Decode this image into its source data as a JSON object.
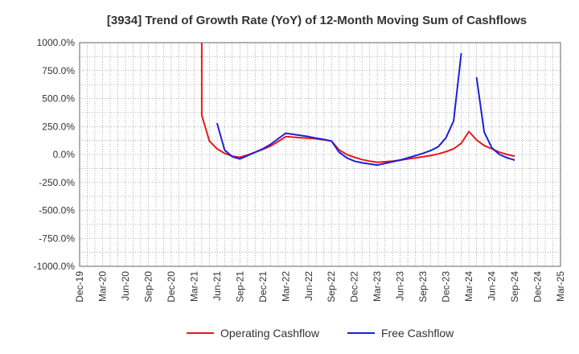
{
  "chart_data": {
    "type": "line",
    "title": "[3934]  Trend of Growth Rate (YoY) of 12-Month Moving Sum of Cashflows",
    "xlabel": "",
    "ylabel": "",
    "ylim": [
      -1000,
      1000
    ],
    "y_ticks": [
      "1000.0%",
      "750.0%",
      "500.0%",
      "250.0%",
      "0.0%",
      "-250.0%",
      "-500.0%",
      "-750.0%",
      "-1000.0%"
    ],
    "x_ticks": [
      "Dec-19",
      "Mar-20",
      "Jun-20",
      "Sep-20",
      "Dec-20",
      "Mar-21",
      "Jun-21",
      "Sep-21",
      "Dec-21",
      "Mar-22",
      "Jun-22",
      "Sep-22",
      "Dec-22",
      "Mar-23",
      "Jun-23",
      "Sep-23",
      "Dec-23",
      "Mar-24",
      "Jun-24",
      "Sep-24",
      "Dec-24",
      "Mar-25"
    ],
    "x_range": [
      "2019-12",
      "2025-03"
    ],
    "grid": true,
    "legend_position": "bottom",
    "colors": {
      "operating": "#e8191b",
      "free": "#1f1fd6"
    },
    "series": [
      {
        "name": "Operating Cashflow",
        "color": "#e8191b",
        "points": [
          {
            "x": "2021-04",
            "y": 1000
          },
          {
            "x": "2021-04",
            "y": 350
          },
          {
            "x": "2021-05",
            "y": 120
          },
          {
            "x": "2021-06",
            "y": 50
          },
          {
            "x": "2021-07",
            "y": 10
          },
          {
            "x": "2021-08",
            "y": -15
          },
          {
            "x": "2021-09",
            "y": -25
          },
          {
            "x": "2021-10",
            "y": -5
          },
          {
            "x": "2021-11",
            "y": 20
          },
          {
            "x": "2021-12",
            "y": 45
          },
          {
            "x": "2022-01",
            "y": 75
          },
          {
            "x": "2022-02",
            "y": 115
          },
          {
            "x": "2022-03",
            "y": 160
          },
          {
            "x": "2022-04",
            "y": 155
          },
          {
            "x": "2022-05",
            "y": 150
          },
          {
            "x": "2022-06",
            "y": 145
          },
          {
            "x": "2022-07",
            "y": 140
          },
          {
            "x": "2022-08",
            "y": 130
          },
          {
            "x": "2022-09",
            "y": 120
          },
          {
            "x": "2022-10",
            "y": 40
          },
          {
            "x": "2022-11",
            "y": 0
          },
          {
            "x": "2022-12",
            "y": -25
          },
          {
            "x": "2023-01",
            "y": -45
          },
          {
            "x": "2023-02",
            "y": -60
          },
          {
            "x": "2023-03",
            "y": -70
          },
          {
            "x": "2023-04",
            "y": -65
          },
          {
            "x": "2023-05",
            "y": -60
          },
          {
            "x": "2023-06",
            "y": -50
          },
          {
            "x": "2023-07",
            "y": -40
          },
          {
            "x": "2023-08",
            "y": -30
          },
          {
            "x": "2023-09",
            "y": -20
          },
          {
            "x": "2023-10",
            "y": -10
          },
          {
            "x": "2023-11",
            "y": 5
          },
          {
            "x": "2023-12",
            "y": 25
          },
          {
            "x": "2024-01",
            "y": 50
          },
          {
            "x": "2024-02",
            "y": 100
          },
          {
            "x": "2024-03",
            "y": 205
          },
          {
            "x": "2024-04",
            "y": 130
          },
          {
            "x": "2024-05",
            "y": 80
          },
          {
            "x": "2024-06",
            "y": 50
          },
          {
            "x": "2024-07",
            "y": 20
          },
          {
            "x": "2024-08",
            "y": 0
          },
          {
            "x": "2024-09",
            "y": -15
          }
        ]
      },
      {
        "name": "Free Cashflow",
        "color": "#1f1fd6",
        "segments": [
          [
            {
              "x": "2021-06",
              "y": 280
            },
            {
              "x": "2021-07",
              "y": 40
            },
            {
              "x": "2021-08",
              "y": -20
            },
            {
              "x": "2021-09",
              "y": -40
            },
            {
              "x": "2021-10",
              "y": -10
            },
            {
              "x": "2021-11",
              "y": 20
            },
            {
              "x": "2021-12",
              "y": 50
            },
            {
              "x": "2022-01",
              "y": 90
            },
            {
              "x": "2022-02",
              "y": 140
            },
            {
              "x": "2022-03",
              "y": 190
            },
            {
              "x": "2022-04",
              "y": 180
            },
            {
              "x": "2022-05",
              "y": 170
            },
            {
              "x": "2022-06",
              "y": 160
            },
            {
              "x": "2022-07",
              "y": 145
            },
            {
              "x": "2022-08",
              "y": 135
            },
            {
              "x": "2022-09",
              "y": 120
            },
            {
              "x": "2022-10",
              "y": 20
            },
            {
              "x": "2022-11",
              "y": -30
            },
            {
              "x": "2022-12",
              "y": -60
            },
            {
              "x": "2023-01",
              "y": -75
            },
            {
              "x": "2023-02",
              "y": -85
            },
            {
              "x": "2023-03",
              "y": -95
            },
            {
              "x": "2023-04",
              "y": -80
            },
            {
              "x": "2023-05",
              "y": -65
            },
            {
              "x": "2023-06",
              "y": -50
            },
            {
              "x": "2023-07",
              "y": -30
            },
            {
              "x": "2023-08",
              "y": -10
            },
            {
              "x": "2023-09",
              "y": 10
            },
            {
              "x": "2023-10",
              "y": 35
            },
            {
              "x": "2023-11",
              "y": 70
            },
            {
              "x": "2023-12",
              "y": 150
            },
            {
              "x": "2024-01",
              "y": 300
            },
            {
              "x": "2024-02",
              "y": 905
            }
          ],
          [
            {
              "x": "2024-04",
              "y": 690
            },
            {
              "x": "2024-05",
              "y": 200
            },
            {
              "x": "2024-06",
              "y": 60
            },
            {
              "x": "2024-07",
              "y": 0
            },
            {
              "x": "2024-08",
              "y": -30
            },
            {
              "x": "2024-09",
              "y": -50
            }
          ]
        ]
      }
    ]
  }
}
